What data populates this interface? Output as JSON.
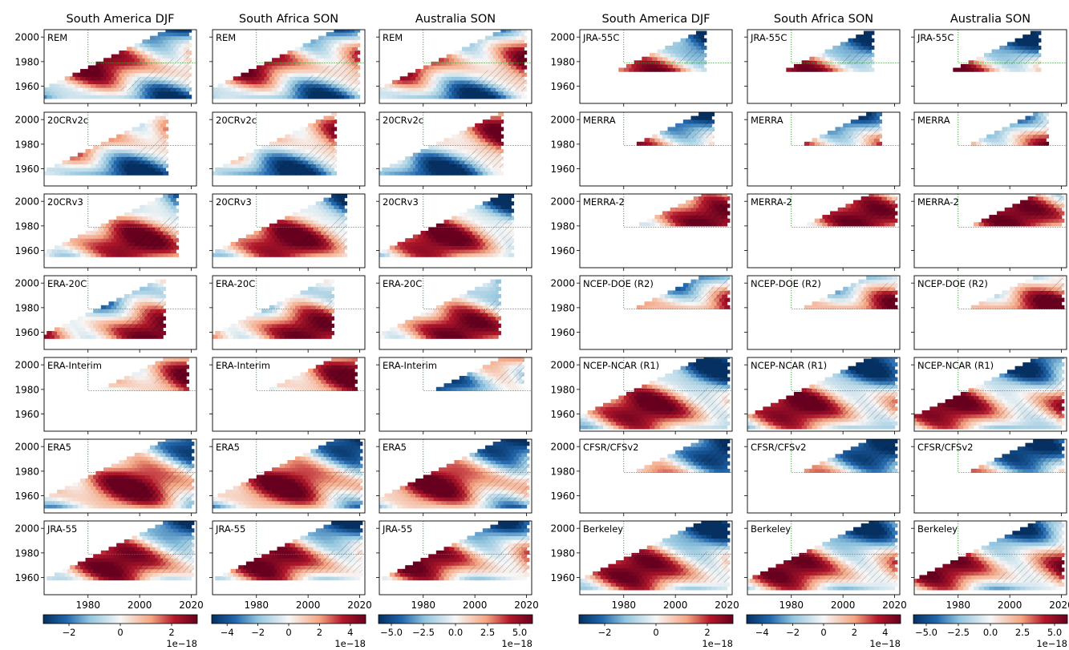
{
  "chart_data": {
    "type": "heatmap",
    "description_free": true,
    "columns": [
      {
        "title": "South America DJF",
        "cbar_ticks": [
          -2,
          0,
          2
        ],
        "cbar_tick_labels": [
          "−2",
          "0",
          "2"
        ],
        "cbar_range": [
          -3,
          3
        ],
        "cbar_exponent": "1e−18"
      },
      {
        "title": "South Africa SON",
        "cbar_ticks": [
          -4,
          -2,
          0,
          2,
          4
        ],
        "cbar_tick_labels": [
          "−4",
          "−2",
          "0",
          "2",
          "4"
        ],
        "cbar_range": [
          -5,
          5
        ],
        "cbar_exponent": "1e−18"
      },
      {
        "title": "Australia SON",
        "cbar_ticks": [
          -5,
          -2.5,
          0,
          2.5,
          5
        ],
        "cbar_tick_labels": [
          "−5.0",
          "−2.5",
          "0.0",
          "2.5",
          "5.0"
        ],
        "cbar_range": [
          -6,
          6
        ],
        "cbar_exponent": "1e−18"
      },
      {
        "title": "South America DJF",
        "cbar_ticks": [
          -2,
          0,
          2
        ],
        "cbar_tick_labels": [
          "−2",
          "0",
          "2"
        ],
        "cbar_range": [
          -3,
          3
        ],
        "cbar_exponent": "1e−18"
      },
      {
        "title": "South Africa SON",
        "cbar_ticks": [
          -4,
          -2,
          0,
          2,
          4
        ],
        "cbar_tick_labels": [
          "−4",
          "−2",
          "0",
          "2",
          "4"
        ],
        "cbar_range": [
          -5,
          5
        ],
        "cbar_exponent": "1e−18"
      },
      {
        "title": "Australia SON",
        "cbar_ticks": [
          -5,
          -2.5,
          0,
          2.5,
          5
        ],
        "cbar_tick_labels": [
          "−5.0",
          "−2.5",
          "0.0",
          "2.5",
          "5.0"
        ],
        "cbar_range": [
          -6,
          6
        ],
        "cbar_exponent": "1e−18"
      }
    ],
    "left_datasets": [
      "REM",
      "20CRv2c",
      "20CRv3",
      "ERA-20C",
      "ERA-Interim",
      "ERA5",
      "JRA-55"
    ],
    "right_datasets": [
      "JRA-55C",
      "MERRA",
      "MERRA-2",
      "NCEP-DOE (R2)",
      "NCEP-NCAR (R1)",
      "CFSR/CFSv2",
      "Berkeley"
    ],
    "x_axis": {
      "range": [
        1963,
        2022
      ],
      "ticks": [
        1980,
        2000,
        2020
      ]
    },
    "y_axis": {
      "range": [
        1946,
        2006
      ],
      "ticks": [
        1960,
        1980,
        2000
      ]
    },
    "reference_start_year": 1979,
    "dataset_periods": {
      "REM": [
        1950,
        2020
      ],
      "20CRv2c": [
        1955,
        2011
      ],
      "20CRv3": [
        1955,
        2015
      ],
      "ERA-20C": [
        1955,
        2010
      ],
      "ERA-Interim": [
        1979,
        2019
      ],
      "ERA5": [
        1950,
        2021
      ],
      "JRA-55": [
        1958,
        2021
      ],
      "JRA-55C": [
        1972,
        2012
      ],
      "MERRA": [
        1979,
        2015
      ],
      "MERRA-2": [
        1980,
        2021
      ],
      "NCEP-DOE (R2)": [
        1979,
        2021
      ],
      "NCEP-NCAR (R1)": [
        1948,
        2021
      ],
      "CFSR/CFSv2": [
        1979,
        2021
      ],
      "Berkeley": [
        1950,
        2021
      ]
    }
  }
}
